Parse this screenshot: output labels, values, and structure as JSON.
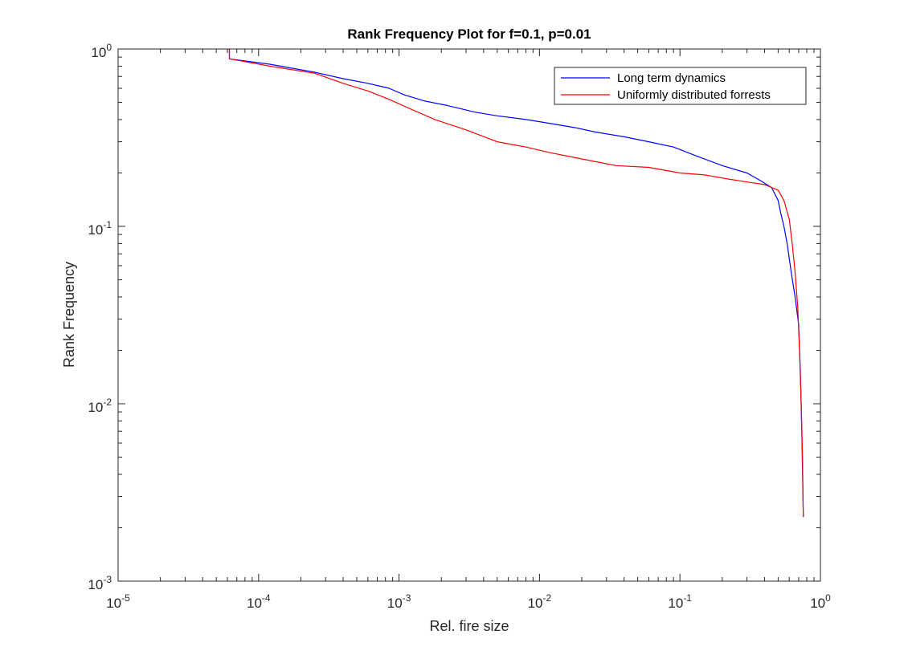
{
  "chart_data": {
    "type": "line",
    "title": "Rank Frequency Plot for f=0.1, p=0.01",
    "xlabel": "Rel. fire size",
    "ylabel": "Rank Frequency",
    "xscale": "log",
    "yscale": "log",
    "xlim": [
      1e-05,
      1
    ],
    "ylim": [
      0.001,
      1
    ],
    "x_ticks": [
      {
        "value": 1e-05,
        "base": "10",
        "exp": "-5"
      },
      {
        "value": 0.0001,
        "base": "10",
        "exp": "-4"
      },
      {
        "value": 0.001,
        "base": "10",
        "exp": "-3"
      },
      {
        "value": 0.01,
        "base": "10",
        "exp": "-2"
      },
      {
        "value": 0.1,
        "base": "10",
        "exp": "-1"
      },
      {
        "value": 1,
        "base": "10",
        "exp": "0"
      }
    ],
    "y_ticks": [
      {
        "value": 0.001,
        "base": "10",
        "exp": "-3"
      },
      {
        "value": 0.01,
        "base": "10",
        "exp": "-2"
      },
      {
        "value": 0.1,
        "base": "10",
        "exp": "-1"
      },
      {
        "value": 1,
        "base": "10",
        "exp": "0"
      }
    ],
    "grid": false,
    "box": true,
    "legend_position": "top-right",
    "series": [
      {
        "name": "Long term dynamics",
        "color": "#0000ff",
        "x": [
          6.2e-05,
          6.2e-05,
          0.00012,
          0.00025,
          0.0004,
          0.0006,
          0.00085,
          0.0011,
          0.0015,
          0.0022,
          0.0035,
          0.005,
          0.008,
          0.012,
          0.018,
          0.025,
          0.04,
          0.06,
          0.09,
          0.13,
          0.2,
          0.3,
          0.38,
          0.45,
          0.5,
          0.52,
          0.55,
          0.58,
          0.62,
          0.66,
          0.7,
          0.72,
          0.74,
          0.755
        ],
        "y": [
          1.0,
          0.88,
          0.82,
          0.74,
          0.68,
          0.64,
          0.6,
          0.55,
          0.51,
          0.48,
          0.44,
          0.42,
          0.4,
          0.38,
          0.36,
          0.34,
          0.32,
          0.3,
          0.28,
          0.25,
          0.22,
          0.2,
          0.18,
          0.165,
          0.14,
          0.12,
          0.1,
          0.08,
          0.055,
          0.04,
          0.028,
          0.015,
          0.006,
          0.0023
        ]
      },
      {
        "name": "Uniformly distributed forrests",
        "color": "#ff0000",
        "x": [
          6.2e-05,
          6.2e-05,
          0.00012,
          0.00025,
          0.0004,
          0.0006,
          0.00085,
          0.0012,
          0.0018,
          0.003,
          0.005,
          0.008,
          0.012,
          0.02,
          0.035,
          0.06,
          0.1,
          0.15,
          0.22,
          0.3,
          0.4,
          0.5,
          0.55,
          0.6,
          0.63,
          0.66,
          0.69,
          0.71,
          0.73,
          0.745,
          0.755
        ],
        "y": [
          1.0,
          0.88,
          0.8,
          0.73,
          0.64,
          0.58,
          0.52,
          0.46,
          0.4,
          0.35,
          0.3,
          0.28,
          0.26,
          0.24,
          0.22,
          0.215,
          0.2,
          0.195,
          0.185,
          0.178,
          0.172,
          0.16,
          0.14,
          0.11,
          0.08,
          0.055,
          0.035,
          0.02,
          0.01,
          0.005,
          0.0023
        ]
      }
    ]
  }
}
